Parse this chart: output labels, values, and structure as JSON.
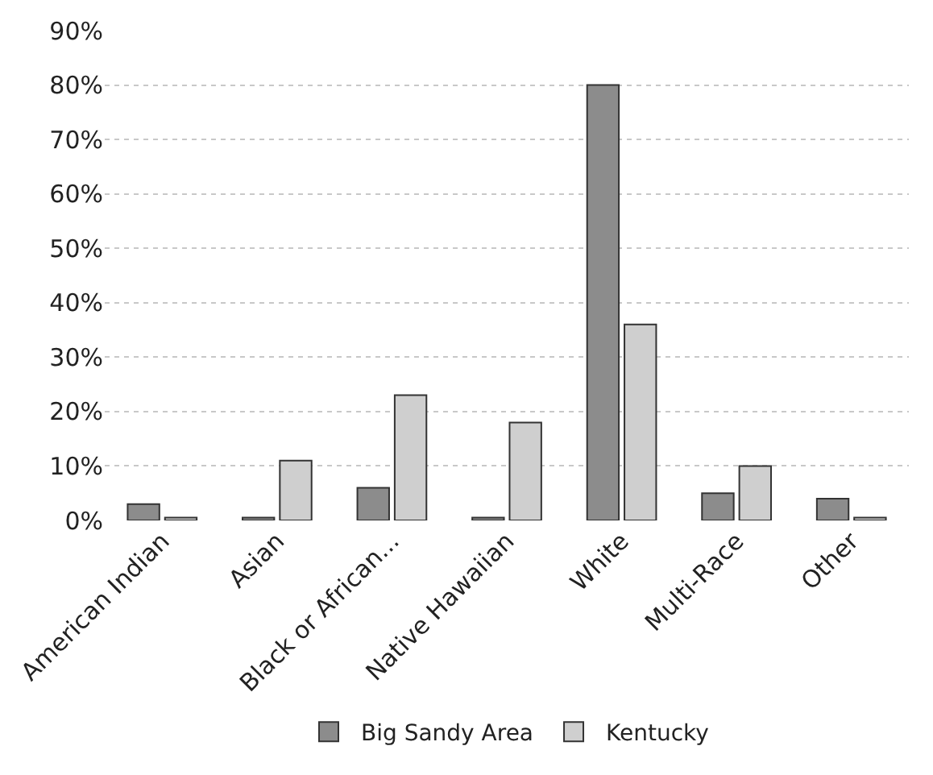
{
  "chart_data": {
    "type": "bar",
    "categories": [
      "American Indian",
      "Asian",
      "Black or African...",
      "Native Hawaiian",
      "White",
      "Multi-Race",
      "Other"
    ],
    "series": [
      {
        "name": "Big Sandy Area",
        "color": "#8c8c8c",
        "values": [
          3,
          0.5,
          6,
          0.5,
          80,
          5,
          4
        ]
      },
      {
        "name": "Kentucky",
        "color": "#cfcfcf",
        "values": [
          0.5,
          11,
          23,
          18,
          36,
          10,
          0.5
        ]
      }
    ],
    "ylim": [
      0,
      90
    ],
    "yticks": [
      {
        "value": 0,
        "label": "0%"
      },
      {
        "value": 10,
        "label": "10%"
      },
      {
        "value": 20,
        "label": "20%"
      },
      {
        "value": 30,
        "label": "30%"
      },
      {
        "value": 40,
        "label": "40%"
      },
      {
        "value": 50,
        "label": "50%"
      },
      {
        "value": 60,
        "label": "60%"
      },
      {
        "value": 70,
        "label": "70%"
      },
      {
        "value": 80,
        "label": "80%"
      },
      {
        "value": 90,
        "label": "90%"
      }
    ],
    "grid": "y",
    "legend": "bottom"
  }
}
